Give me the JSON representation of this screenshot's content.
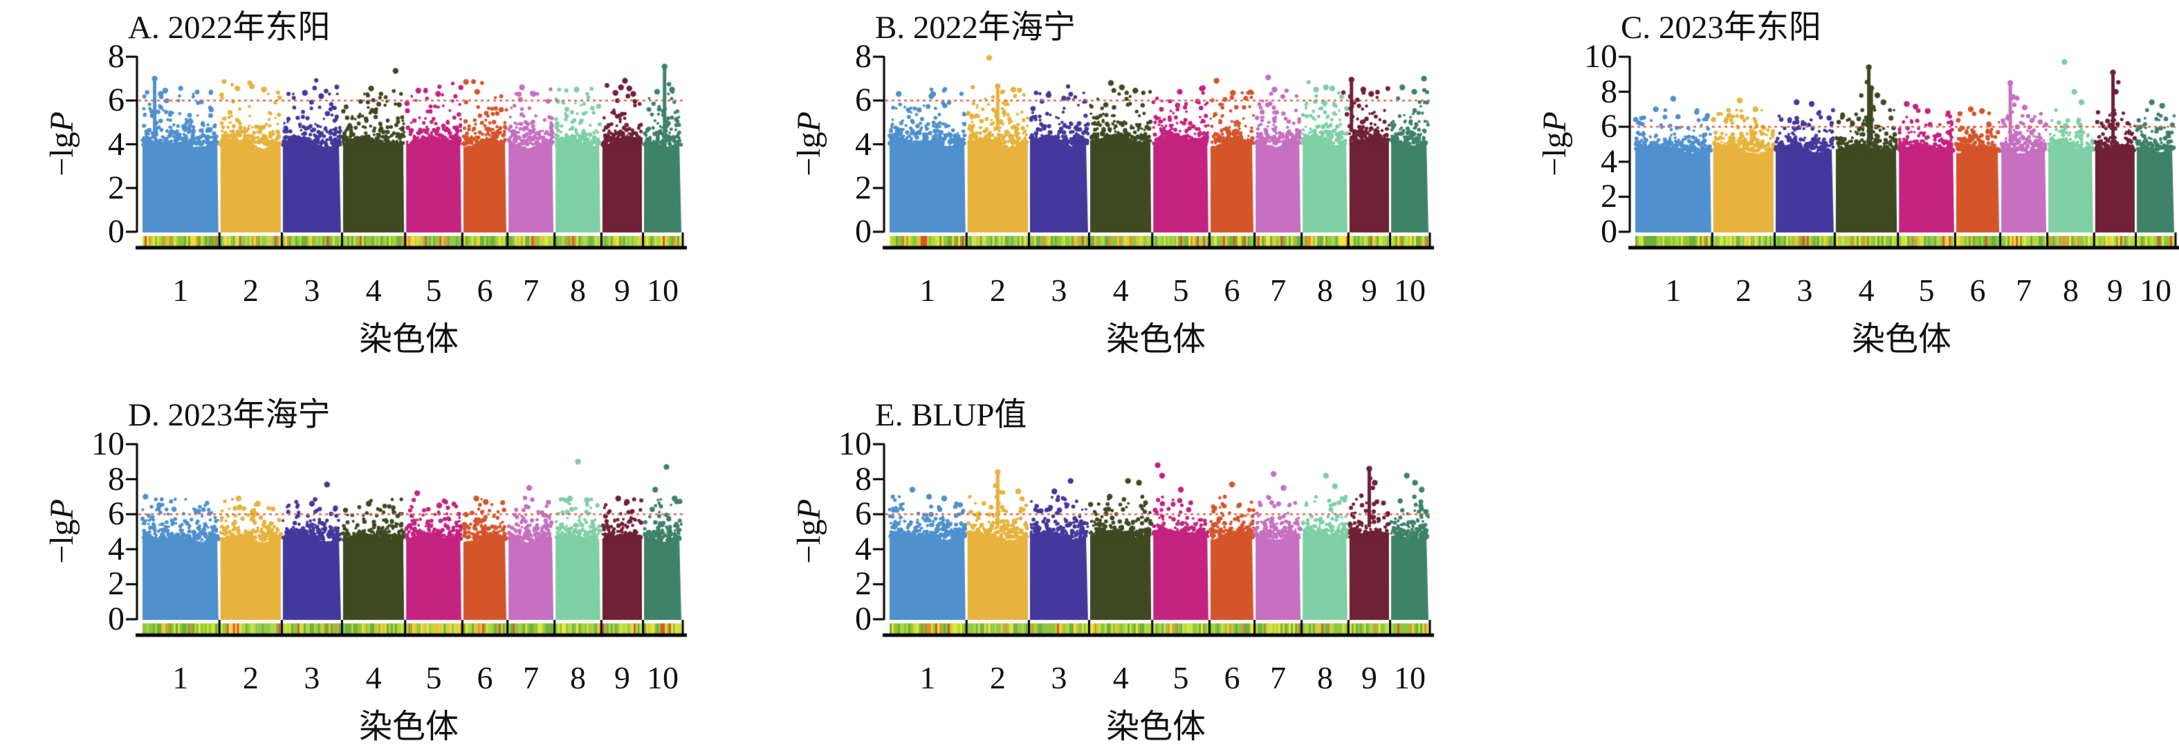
{
  "figure": {
    "background": "#ffffff",
    "text_color": "#111111",
    "axis_color": "#000000",
    "threshold_color": "#e2644e",
    "xlabel": "染色体",
    "ylabel_prefix": "−lg",
    "ylabel_italic": "P",
    "chrom_labels": [
      "1",
      "2",
      "3",
      "4",
      "5",
      "6",
      "7",
      "8",
      "9",
      "10"
    ],
    "chrom_colors": [
      "#4f90ce",
      "#e7b33c",
      "#45389c",
      "#3f4a22",
      "#c52380",
      "#d5552b",
      "#c76fc1",
      "#7ed0a4",
      "#6f2137",
      "#3e8269"
    ],
    "chrom_rel_sizes": [
      307,
      244,
      235,
      247,
      223,
      174,
      182,
      181,
      160,
      151
    ],
    "density_palette": [
      {
        "color": "#6fae3a",
        "w": 0.22
      },
      {
        "color": "#8cc63f",
        "w": 0.26
      },
      {
        "color": "#aed63d",
        "w": 0.18
      },
      {
        "color": "#cde23a",
        "w": 0.12
      },
      {
        "color": "#f0e13a",
        "w": 0.08
      },
      {
        "color": "#f5bc30",
        "w": 0.05
      },
      {
        "color": "#ee8a2c",
        "w": 0.05
      },
      {
        "color": "#e1512a",
        "w": 0.04
      }
    ]
  },
  "chart_data": [
    {
      "id": "A",
      "type": "scatter",
      "subtype": "manhattan",
      "title": "A. 2022年东阳",
      "xlabel": "染色体",
      "ylabel": "−lgP",
      "categories": [
        "1",
        "2",
        "3",
        "4",
        "5",
        "6",
        "7",
        "8",
        "9",
        "10"
      ],
      "ylim": [
        0,
        8
      ],
      "yticks": [
        0,
        2,
        4,
        6,
        8
      ],
      "threshold": 6,
      "dense_top": 4.35,
      "seed": 11,
      "peaks": [
        {
          "c": 1,
          "p": 0.16,
          "v": 7.0,
          "s": 1
        },
        {
          "c": 1,
          "p": 0.3,
          "v": 6.45
        },
        {
          "c": 1,
          "p": 0.24,
          "v": 6.3
        },
        {
          "c": 2,
          "p": 0.28,
          "v": 6.55
        },
        {
          "c": 2,
          "p": 0.52,
          "v": 6.65
        },
        {
          "c": 2,
          "p": 0.72,
          "v": 6.5
        },
        {
          "c": 3,
          "p": 0.38,
          "v": 6.35
        },
        {
          "c": 3,
          "p": 0.66,
          "v": 6.2
        },
        {
          "c": 4,
          "p": 0.46,
          "v": 6.55
        },
        {
          "c": 4,
          "p": 0.86,
          "v": 7.35
        },
        {
          "c": 5,
          "p": 0.22,
          "v": 6.45
        },
        {
          "c": 5,
          "p": 0.58,
          "v": 6.3
        },
        {
          "c": 6,
          "p": 0.06,
          "v": 6.85
        },
        {
          "c": 6,
          "p": 0.32,
          "v": 6.4
        },
        {
          "c": 7,
          "p": 0.3,
          "v": 6.6
        },
        {
          "c": 7,
          "p": 0.55,
          "v": 6.3
        },
        {
          "c": 8,
          "p": 0.47,
          "v": 6.5
        },
        {
          "c": 9,
          "p": 0.33,
          "v": 6.35
        },
        {
          "c": 9,
          "p": 0.47,
          "v": 6.6
        },
        {
          "c": 9,
          "p": 0.57,
          "v": 6.9
        },
        {
          "c": 9,
          "p": 0.68,
          "v": 6.55
        },
        {
          "c": 9,
          "p": 0.78,
          "v": 6.3
        },
        {
          "c": 10,
          "p": 0.55,
          "v": 7.55,
          "s": 1
        },
        {
          "c": 10,
          "p": 0.35,
          "v": 6.4
        },
        {
          "c": 10,
          "p": 0.75,
          "v": 6.5
        }
      ]
    },
    {
      "id": "B",
      "type": "scatter",
      "subtype": "manhattan",
      "title": "B. 2022年海宁",
      "xlabel": "染色体",
      "ylabel": "−lgP",
      "categories": [
        "1",
        "2",
        "3",
        "4",
        "5",
        "6",
        "7",
        "8",
        "9",
        "10"
      ],
      "ylim": [
        0,
        8
      ],
      "yticks": [
        0,
        2,
        4,
        6,
        8
      ],
      "threshold": 6,
      "dense_top": 4.4,
      "seed": 22,
      "peaks": [
        {
          "c": 1,
          "p": 0.12,
          "v": 6.3
        },
        {
          "c": 1,
          "p": 0.55,
          "v": 6.2
        },
        {
          "c": 2,
          "p": 0.36,
          "v": 7.95
        },
        {
          "c": 2,
          "p": 0.5,
          "v": 6.65,
          "s": 1
        },
        {
          "c": 2,
          "p": 0.76,
          "v": 6.5
        },
        {
          "c": 3,
          "p": 0.32,
          "v": 6.25
        },
        {
          "c": 4,
          "p": 0.34,
          "v": 6.8
        },
        {
          "c": 4,
          "p": 0.52,
          "v": 6.6
        },
        {
          "c": 4,
          "p": 0.74,
          "v": 6.45
        },
        {
          "c": 5,
          "p": 0.48,
          "v": 6.4
        },
        {
          "c": 5,
          "p": 0.88,
          "v": 6.55
        },
        {
          "c": 6,
          "p": 0.14,
          "v": 6.9
        },
        {
          "c": 6,
          "p": 0.52,
          "v": 6.35
        },
        {
          "c": 7,
          "p": 0.28,
          "v": 7.05
        },
        {
          "c": 7,
          "p": 0.42,
          "v": 6.5
        },
        {
          "c": 8,
          "p": 0.3,
          "v": 6.5
        },
        {
          "c": 8,
          "p": 0.52,
          "v": 6.6
        },
        {
          "c": 8,
          "p": 0.66,
          "v": 6.55
        },
        {
          "c": 9,
          "p": 0.05,
          "v": 6.95,
          "s": 1
        },
        {
          "c": 9,
          "p": 0.35,
          "v": 6.5
        },
        {
          "c": 9,
          "p": 0.55,
          "v": 6.3
        },
        {
          "c": 10,
          "p": 0.3,
          "v": 6.6
        },
        {
          "c": 10,
          "p": 0.62,
          "v": 6.4
        },
        {
          "c": 10,
          "p": 0.88,
          "v": 7.0
        }
      ]
    },
    {
      "id": "C",
      "type": "scatter",
      "subtype": "manhattan",
      "title": "C. 2023年东阳",
      "xlabel": "染色体",
      "ylabel": "−lgP",
      "categories": [
        "1",
        "2",
        "3",
        "4",
        "5",
        "6",
        "7",
        "8",
        "9",
        "10"
      ],
      "ylim": [
        0,
        10
      ],
      "yticks": [
        0,
        2,
        4,
        6,
        8,
        10
      ],
      "threshold": 6,
      "dense_top": 5.0,
      "seed": 33,
      "peaks": [
        {
          "c": 1,
          "p": 0.27,
          "v": 7.0
        },
        {
          "c": 1,
          "p": 0.5,
          "v": 7.6
        },
        {
          "c": 2,
          "p": 0.44,
          "v": 7.5
        },
        {
          "c": 2,
          "p": 0.7,
          "v": 7.0
        },
        {
          "c": 3,
          "p": 0.36,
          "v": 7.4
        },
        {
          "c": 3,
          "p": 0.62,
          "v": 7.3
        },
        {
          "c": 4,
          "p": 0.54,
          "v": 9.4,
          "s": 1
        },
        {
          "c": 4,
          "p": 0.58,
          "v": 8.2,
          "s": 1
        },
        {
          "c": 4,
          "p": 0.68,
          "v": 7.8
        },
        {
          "c": 4,
          "p": 0.78,
          "v": 7.4
        },
        {
          "c": 5,
          "p": 0.14,
          "v": 7.3
        },
        {
          "c": 5,
          "p": 0.3,
          "v": 7.15
        },
        {
          "c": 5,
          "p": 0.52,
          "v": 6.9
        },
        {
          "c": 6,
          "p": 0.34,
          "v": 7.0
        },
        {
          "c": 6,
          "p": 0.6,
          "v": 6.9
        },
        {
          "c": 7,
          "p": 0.2,
          "v": 8.5,
          "s": 1
        },
        {
          "c": 7,
          "p": 0.26,
          "v": 7.7
        },
        {
          "c": 7,
          "p": 0.52,
          "v": 7.1
        },
        {
          "c": 8,
          "p": 0.36,
          "v": 9.7
        },
        {
          "c": 8,
          "p": 0.58,
          "v": 8.0
        },
        {
          "c": 8,
          "p": 0.74,
          "v": 7.4
        },
        {
          "c": 9,
          "p": 0.45,
          "v": 9.1,
          "s": 1
        },
        {
          "c": 9,
          "p": 0.52,
          "v": 8.0
        },
        {
          "c": 10,
          "p": 0.4,
          "v": 7.4
        },
        {
          "c": 10,
          "p": 0.68,
          "v": 7.2
        }
      ]
    },
    {
      "id": "D",
      "type": "scatter",
      "subtype": "manhattan",
      "title": "D. 2023年海宁",
      "xlabel": "染色体",
      "ylabel": "−lgP",
      "categories": [
        "1",
        "2",
        "3",
        "4",
        "5",
        "6",
        "7",
        "8",
        "9",
        "10"
      ],
      "ylim": [
        0,
        10
      ],
      "yticks": [
        0,
        2,
        4,
        6,
        8,
        10
      ],
      "threshold": 6,
      "dense_top": 4.9,
      "seed": 44,
      "peaks": [
        {
          "c": 1,
          "p": 0.04,
          "v": 7.0
        },
        {
          "c": 1,
          "p": 0.22,
          "v": 6.5
        },
        {
          "c": 2,
          "p": 0.3,
          "v": 6.9
        },
        {
          "c": 2,
          "p": 0.62,
          "v": 6.6
        },
        {
          "c": 3,
          "p": 0.5,
          "v": 6.6
        },
        {
          "c": 3,
          "p": 0.76,
          "v": 7.7
        },
        {
          "c": 4,
          "p": 0.42,
          "v": 6.6
        },
        {
          "c": 5,
          "p": 0.2,
          "v": 7.2
        },
        {
          "c": 5,
          "p": 0.6,
          "v": 6.5
        },
        {
          "c": 6,
          "p": 0.3,
          "v": 6.9
        },
        {
          "c": 6,
          "p": 0.52,
          "v": 6.7
        },
        {
          "c": 7,
          "p": 0.46,
          "v": 7.5
        },
        {
          "c": 8,
          "p": 0.32,
          "v": 6.9
        },
        {
          "c": 8,
          "p": 0.5,
          "v": 9.0
        },
        {
          "c": 8,
          "p": 0.7,
          "v": 6.8
        },
        {
          "c": 9,
          "p": 0.4,
          "v": 6.9
        },
        {
          "c": 9,
          "p": 0.62,
          "v": 6.7
        },
        {
          "c": 10,
          "p": 0.3,
          "v": 7.4
        },
        {
          "c": 10,
          "p": 0.6,
          "v": 8.7
        },
        {
          "c": 10,
          "p": 0.82,
          "v": 6.9
        }
      ]
    },
    {
      "id": "E",
      "type": "scatter",
      "subtype": "manhattan",
      "title": "E. BLUP值",
      "xlabel": "染色体",
      "ylabel": "−lgP",
      "categories": [
        "1",
        "2",
        "3",
        "4",
        "5",
        "6",
        "7",
        "8",
        "9",
        "10"
      ],
      "ylim": [
        0,
        10
      ],
      "yticks": [
        0,
        2,
        4,
        6,
        8,
        10
      ],
      "threshold": 6,
      "dense_top": 5.05,
      "seed": 55,
      "peaks": [
        {
          "c": 1,
          "p": 0.3,
          "v": 7.4
        },
        {
          "c": 1,
          "p": 0.52,
          "v": 7.0
        },
        {
          "c": 1,
          "p": 0.72,
          "v": 6.9
        },
        {
          "c": 2,
          "p": 0.5,
          "v": 8.4,
          "s": 1
        },
        {
          "c": 2,
          "p": 0.84,
          "v": 7.3
        },
        {
          "c": 3,
          "p": 0.42,
          "v": 7.3
        },
        {
          "c": 3,
          "p": 0.7,
          "v": 7.9
        },
        {
          "c": 4,
          "p": 0.32,
          "v": 7.0
        },
        {
          "c": 4,
          "p": 0.62,
          "v": 7.9
        },
        {
          "c": 4,
          "p": 0.8,
          "v": 7.8
        },
        {
          "c": 5,
          "p": 0.08,
          "v": 8.8
        },
        {
          "c": 5,
          "p": 0.16,
          "v": 8.2
        },
        {
          "c": 5,
          "p": 0.5,
          "v": 7.4
        },
        {
          "c": 6,
          "p": 0.5,
          "v": 7.7
        },
        {
          "c": 7,
          "p": 0.4,
          "v": 8.3
        },
        {
          "c": 7,
          "p": 0.62,
          "v": 7.5
        },
        {
          "c": 8,
          "p": 0.52,
          "v": 8.2
        },
        {
          "c": 8,
          "p": 0.72,
          "v": 7.6
        },
        {
          "c": 9,
          "p": 0.5,
          "v": 8.6,
          "s": 1
        },
        {
          "c": 9,
          "p": 0.64,
          "v": 7.8
        },
        {
          "c": 10,
          "p": 0.42,
          "v": 8.2
        },
        {
          "c": 10,
          "p": 0.64,
          "v": 7.8
        },
        {
          "c": 10,
          "p": 0.82,
          "v": 7.4
        }
      ]
    }
  ]
}
